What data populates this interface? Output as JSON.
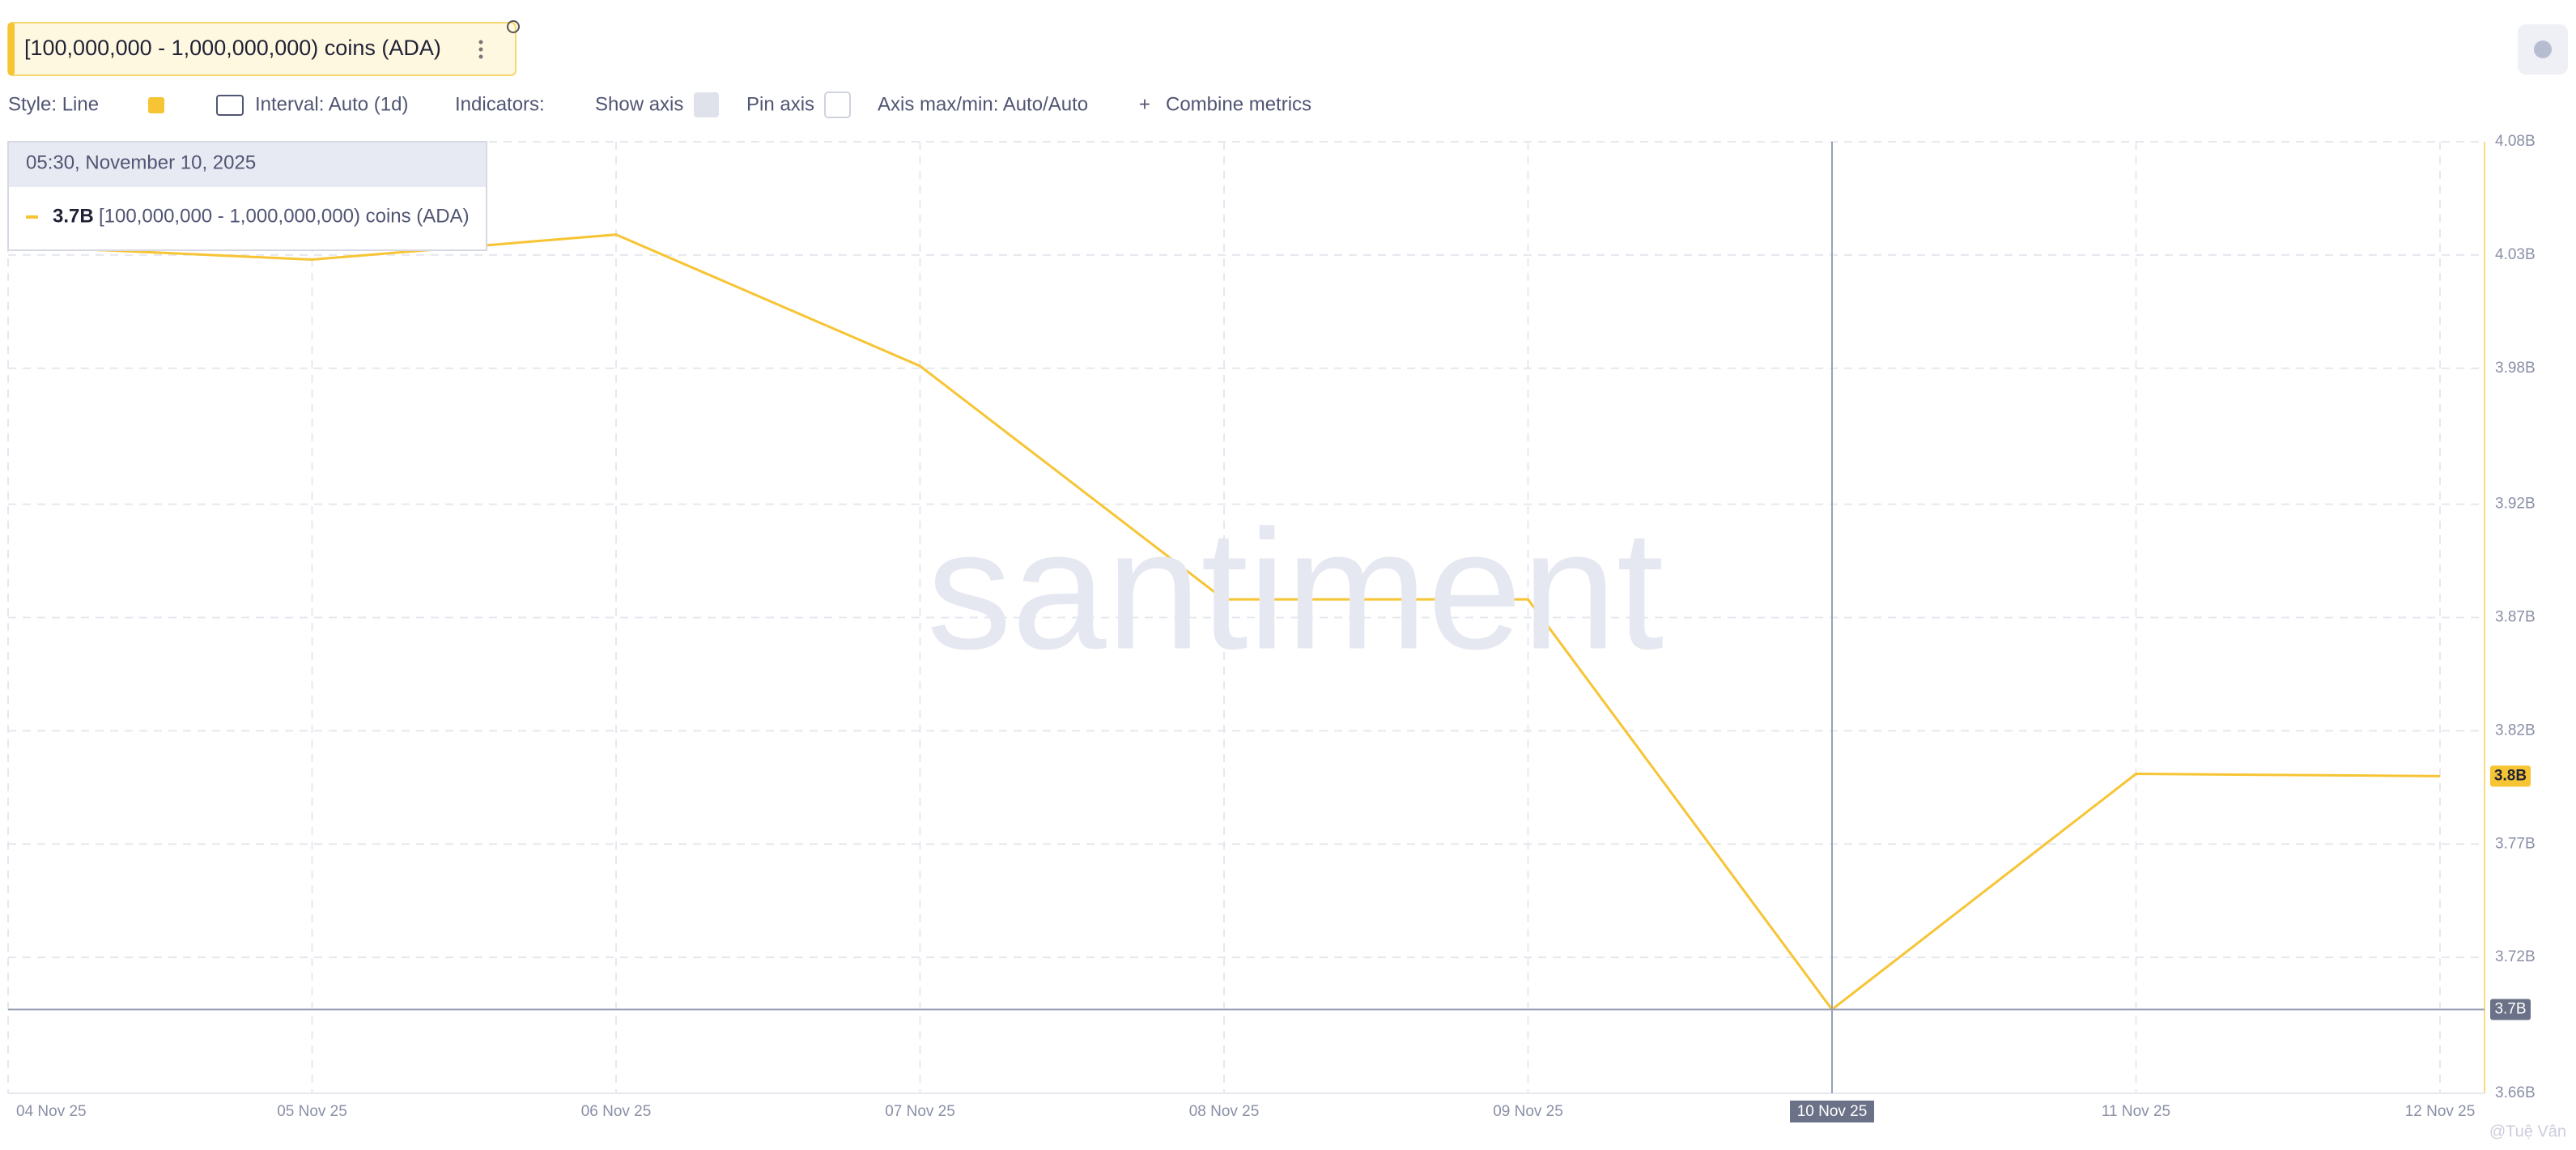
{
  "toolbar": {
    "metric_title": "[100,000,000 - 1,000,000,000) coins (ADA)",
    "style": "Style: Line",
    "interval": "Interval: Auto (1d)",
    "indicators": "Indicators:",
    "show_axis": "Show axis",
    "pin_axis": "Pin axis",
    "axis_maxmin": "Axis max/min: Auto/Auto",
    "combine": "Combine metrics"
  },
  "tooltip": {
    "time": "05:30, November 10, 2025",
    "value": "3.7B",
    "metric": "[100,000,000 - 1,000,000,000) coins (ADA)"
  },
  "watermark": "santiment",
  "credit": "@Tuệ Vân",
  "chart_data": {
    "type": "line",
    "categories": [
      "04 Nov 25",
      "05 Nov 25",
      "06 Nov 25",
      "07 Nov 25",
      "08 Nov 25",
      "09 Nov 25",
      "10 Nov 25",
      "11 Nov 25",
      "12 Nov 25"
    ],
    "series": [
      {
        "name": "[100,000,000 - 1,000,000,000) coins (ADA)",
        "color": "#f7c434",
        "values": [
          4.034,
          4.028,
          4.039,
          3.981,
          3.878,
          3.878,
          3.697,
          3.801,
          3.8
        ]
      }
    ],
    "ylim": [
      3.66,
      4.08
    ],
    "yticks": [
      {
        "value": 4.08,
        "label": "4.08B"
      },
      {
        "value": 4.03,
        "label": "4.03B"
      },
      {
        "value": 3.98,
        "label": "3.98B"
      },
      {
        "value": 3.92,
        "label": "3.92B"
      },
      {
        "value": 3.87,
        "label": "3.87B"
      },
      {
        "value": 3.82,
        "label": "3.82B"
      },
      {
        "value": 3.77,
        "label": "3.77B"
      },
      {
        "value": 3.72,
        "label": "3.72B"
      },
      {
        "value": 3.66,
        "label": "3.66B"
      }
    ],
    "grid": true,
    "crosshair_index": 6,
    "crosshair_label": "3.7B",
    "last_value_label": "3.8B"
  }
}
